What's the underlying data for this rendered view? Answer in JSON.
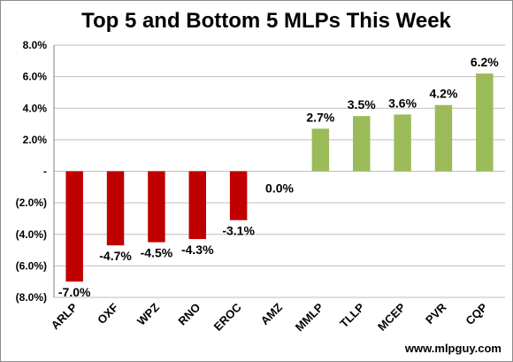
{
  "chart_data": {
    "type": "bar",
    "title": "Top 5 and Bottom 5 MLPs This Week",
    "categories": [
      "ARLP",
      "OXF",
      "WPZ",
      "RNO",
      "EROC",
      "AMZ",
      "MMLP",
      "TLLP",
      "MCEP",
      "PVR",
      "CQP"
    ],
    "values": [
      -7.0,
      -4.7,
      -4.5,
      -4.3,
      -3.1,
      0.0,
      2.7,
      3.5,
      3.6,
      4.2,
      6.2
    ],
    "data_labels": [
      "-7.0%",
      "-4.7%",
      "-4.5%",
      "-4.3%",
      "-3.1%",
      "0.0%",
      "2.7%",
      "3.5%",
      "3.6%",
      "4.2%",
      "6.2%"
    ],
    "ylim": [
      -8.0,
      8.0
    ],
    "yticks": [
      8.0,
      6.0,
      4.0,
      2.0,
      0.0,
      -2.0,
      -4.0,
      -6.0,
      -8.0
    ],
    "ytick_labels": [
      "8.0%",
      "6.0%",
      "4.0%",
      "2.0%",
      "-",
      "(2.0%)",
      "(4.0%)",
      "(6.0%)",
      "(8.0%)"
    ],
    "xlabel": "",
    "ylabel": "",
    "gridlines": true,
    "colors": {
      "negative": "#c00000",
      "positive": "#9bbb59",
      "grid": "#bfbfbf",
      "axis": "#808080"
    }
  },
  "source": "www.mlpguy.com"
}
